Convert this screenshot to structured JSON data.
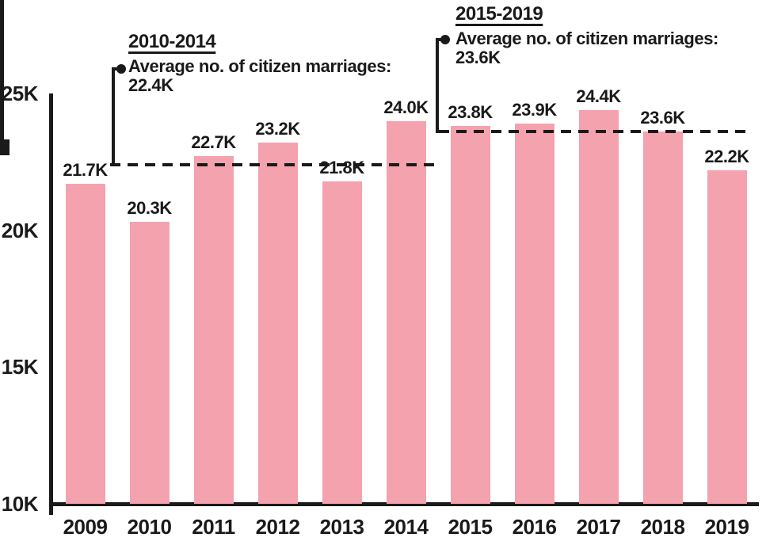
{
  "chart_data": {
    "type": "bar",
    "title": "",
    "xlabel": "",
    "ylabel": "",
    "unit": "K",
    "categories": [
      "2009",
      "2010",
      "2011",
      "2012",
      "2013",
      "2014",
      "2015",
      "2016",
      "2017",
      "2018",
      "2019"
    ],
    "values": [
      21.7,
      20.3,
      22.7,
      23.2,
      21.8,
      24.0,
      23.8,
      23.9,
      24.4,
      23.6,
      22.2
    ],
    "value_labels": [
      "21.7K",
      "20.3K",
      "22.7K",
      "23.2K",
      "21.8K",
      "24.0K",
      "23.8K",
      "23.9K",
      "24.4K",
      "23.6K",
      "22.2K"
    ],
    "ylim": [
      10,
      25
    ],
    "y_ticks": [
      {
        "value": 25,
        "label": "25K"
      },
      {
        "value": 20,
        "label": "20K"
      },
      {
        "value": 15,
        "label": "15K"
      },
      {
        "value": 10,
        "label": "10K"
      }
    ],
    "grid": "off",
    "legend": "none",
    "bar_color": "#F4A2AD",
    "axis_color": "#1a1a1a",
    "text_color": "#1a1a1a",
    "annotations": [
      {
        "period": "2010-2014",
        "line1": "Average no. of citizen marriages:",
        "line2": "22.4K",
        "average_value": 22.4,
        "span": [
          "2010",
          "2014"
        ]
      },
      {
        "period": "2015-2019",
        "line1": "Average no. of citizen marriages:",
        "line2": "23.6K",
        "average_value": 23.6,
        "span": [
          "2015",
          "2019"
        ]
      }
    ]
  }
}
